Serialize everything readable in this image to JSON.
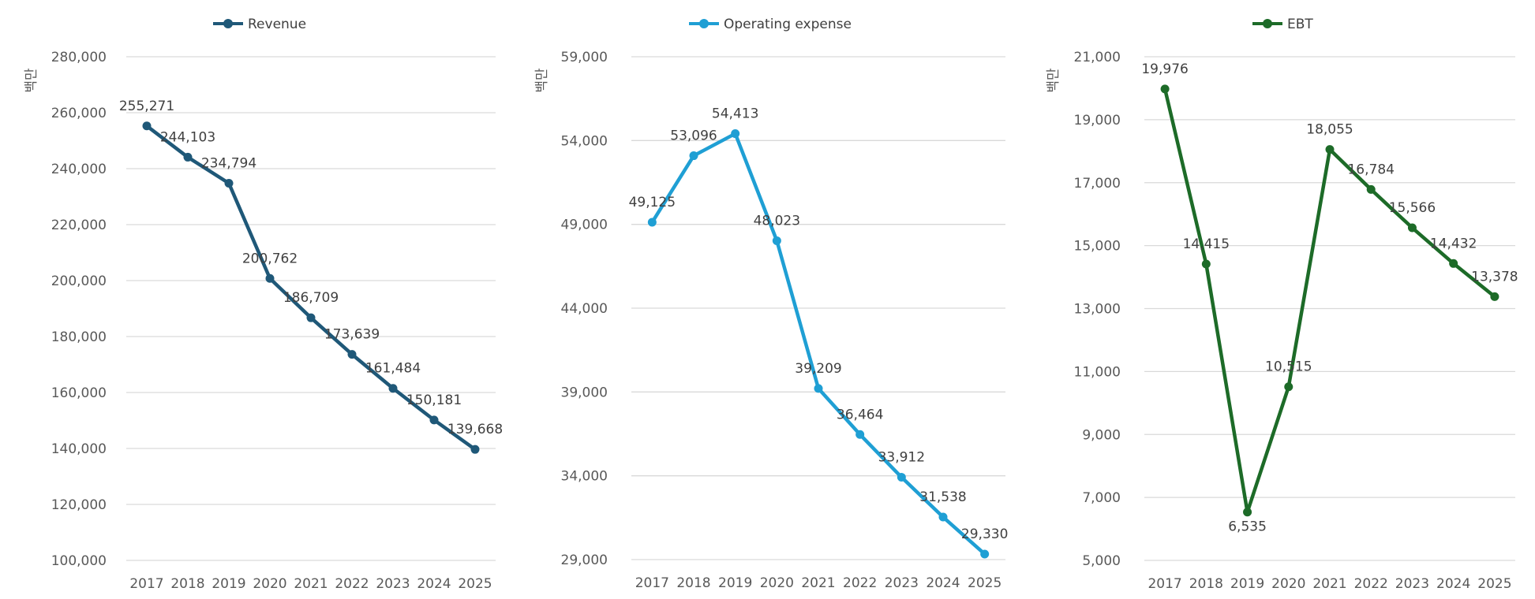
{
  "unit_label": "백만",
  "chart_data": [
    {
      "type": "line",
      "series": [
        {
          "name": "Revenue",
          "values": [
            255271,
            244103,
            234794,
            200762,
            186709,
            173639,
            161484,
            150181,
            139668
          ]
        }
      ],
      "categories": [
        "2017",
        "2018",
        "2019",
        "2020",
        "2021",
        "2022",
        "2023",
        "2024",
        "2025"
      ],
      "ylim": [
        100000,
        280000
      ],
      "yticks": [
        100000,
        120000,
        140000,
        160000,
        180000,
        200000,
        220000,
        240000,
        260000,
        280000
      ],
      "ylabel": "백만",
      "color": "#1f5878",
      "grid": true,
      "legend": "top"
    },
    {
      "type": "line",
      "series": [
        {
          "name": "Operating expense",
          "values": [
            49125,
            53096,
            54413,
            48023,
            39209,
            36464,
            33912,
            31538,
            29330
          ]
        }
      ],
      "categories": [
        "2017",
        "2018",
        "2019",
        "2020",
        "2021",
        "2022",
        "2023",
        "2024",
        "2025"
      ],
      "ylim": [
        29000,
        59000
      ],
      "yticks": [
        29000,
        34000,
        39000,
        44000,
        49000,
        54000,
        59000
      ],
      "ylabel": "백만",
      "color": "#1f9fd4",
      "grid": true,
      "legend": "top"
    },
    {
      "type": "line",
      "series": [
        {
          "name": "EBT",
          "values": [
            19976,
            14415,
            6535,
            10515,
            18055,
            16784,
            15566,
            14432,
            13378
          ]
        }
      ],
      "categories": [
        "2017",
        "2018",
        "2019",
        "2020",
        "2021",
        "2022",
        "2023",
        "2024",
        "2025"
      ],
      "ylim": [
        5000,
        21000
      ],
      "yticks": [
        5000,
        7000,
        9000,
        11000,
        13000,
        15000,
        17000,
        19000,
        21000
      ],
      "ylabel": "백만",
      "color": "#1d6b28",
      "grid": true,
      "legend": "top"
    }
  ]
}
